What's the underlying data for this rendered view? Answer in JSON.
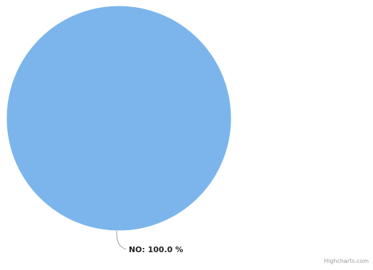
{
  "chart_data": {
    "type": "pie",
    "slices": [
      {
        "name": "NO",
        "value": 100.0,
        "label": "NO: 100.0 %",
        "color": "#7cb5ec"
      }
    ]
  },
  "credits": "Highcharts.com"
}
